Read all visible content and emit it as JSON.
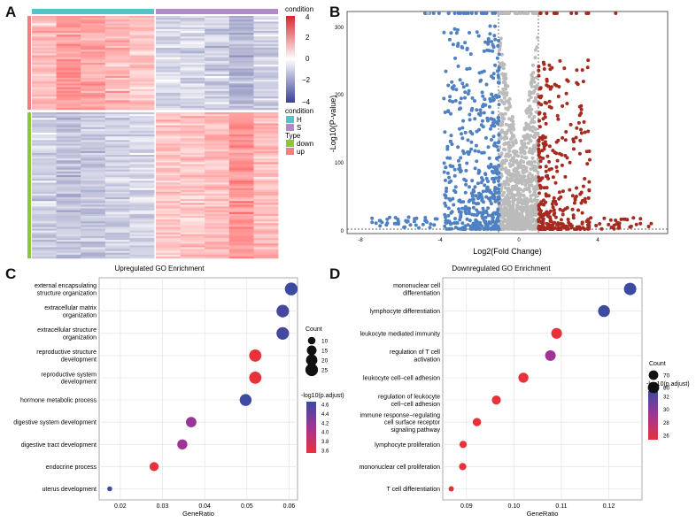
{
  "panels": {
    "a": "A",
    "b": "B",
    "c": "C",
    "d": "D"
  },
  "heatmap": {
    "legend": {
      "condition_title": "condition",
      "scale_ticks": [
        "4",
        "2",
        "0",
        "−2",
        "−4"
      ],
      "condition_levels": [
        "H",
        "S"
      ],
      "type_title": "Type",
      "type_levels": [
        "down",
        "up"
      ]
    },
    "colors": {
      "low": "#3a3f97",
      "mid": "#ffffff",
      "high": "#d7262d",
      "cond_h": "#56c1c6",
      "cond_s": "#b08ac6",
      "type_down": "#8cc63e",
      "type_up": "#f08080"
    }
  },
  "volcano": {
    "ylabel": "-Log10(P-value)",
    "xlabel": "Log2(Fold Change)",
    "xticks": [
      "-8",
      "-4",
      "0",
      "4"
    ],
    "yticks": [
      "0",
      "100",
      "200",
      "300"
    ],
    "colors": {
      "down": "#4f81c2",
      "ns": "#bbbbbb",
      "up": "#a52a1f"
    }
  },
  "chart_data": [
    {
      "type": "scatter",
      "title": "Upregulated GO Enrichment",
      "xlabel": "GeneRatio",
      "ylabel": "",
      "xlim": [
        0.015,
        0.062
      ],
      "xticks": [
        "0.02",
        "0.03",
        "0.04",
        "0.05",
        "0.06"
      ],
      "categories": [
        [
          "external encapsulating",
          "structure organization"
        ],
        [
          "extracellular matrix",
          "organization"
        ],
        [
          "extracellular structure",
          "organization"
        ],
        [
          "reproductive structure",
          "development"
        ],
        [
          "reproductive system",
          "development"
        ],
        [
          "hormone metabolic process"
        ],
        [
          "digestive system development"
        ],
        [
          "digestive tract development"
        ],
        [
          "endocrine process"
        ],
        [
          "uterus development"
        ]
      ],
      "x": [
        0.0605,
        0.0585,
        0.0585,
        0.052,
        0.052,
        0.0497,
        0.0368,
        0.0347,
        0.028,
        0.0175
      ],
      "count": [
        26,
        25,
        25,
        24,
        24,
        22,
        17,
        16,
        13,
        8
      ],
      "color_value": [
        4.65,
        4.6,
        4.6,
        3.55,
        3.55,
        4.65,
        4.15,
        4.1,
        3.55,
        4.6
      ],
      "legend": {
        "size_title": "Count",
        "size_ticks": [
          10,
          15,
          20,
          25
        ],
        "color_title": "-log10(p.adjust)",
        "color_ticks": [
          "4.6",
          "4.4",
          "4.2",
          "4.0",
          "3.8",
          "3.6"
        ]
      }
    },
    {
      "type": "scatter",
      "title": "Downregulated GO Enrichment",
      "xlabel": "GeneRatio",
      "ylabel": "",
      "xlim": [
        0.085,
        0.127
      ],
      "xticks": [
        "0.09",
        "0.10",
        "0.11",
        "0.12"
      ],
      "categories": [
        [
          "mononuclear cell",
          "differentiation"
        ],
        [
          "lymphocyte differentiation"
        ],
        [
          "leukocyte mediated immunity"
        ],
        [
          "regulation of T cell",
          "activation"
        ],
        [
          "leukocyte cell−cell adhesion"
        ],
        [
          "regulation of leukocyte",
          "cell−cell adhesion"
        ],
        [
          "immune response−regulating",
          "cell surface receptor",
          "signaling pathway"
        ],
        [
          "lymphocyte proliferation"
        ],
        [
          "mononuclear cell proliferation"
        ],
        [
          "T cell differentiation"
        ]
      ],
      "x": [
        0.1245,
        0.119,
        0.109,
        0.1077,
        0.102,
        0.0963,
        0.0922,
        0.0893,
        0.0892,
        0.0868
      ],
      "count": [
        88,
        84,
        77,
        76,
        73,
        68,
        65,
        62,
        62,
        60
      ],
      "color_value": [
        34,
        34,
        26,
        30,
        26,
        26,
        26,
        26,
        26,
        26
      ],
      "legend": {
        "size_title": "Count",
        "size_ticks": [
          70,
          80
        ],
        "color_title": "-log10(p.adjust)",
        "color_ticks": [
          "32",
          "30",
          "28",
          "26"
        ]
      }
    }
  ]
}
